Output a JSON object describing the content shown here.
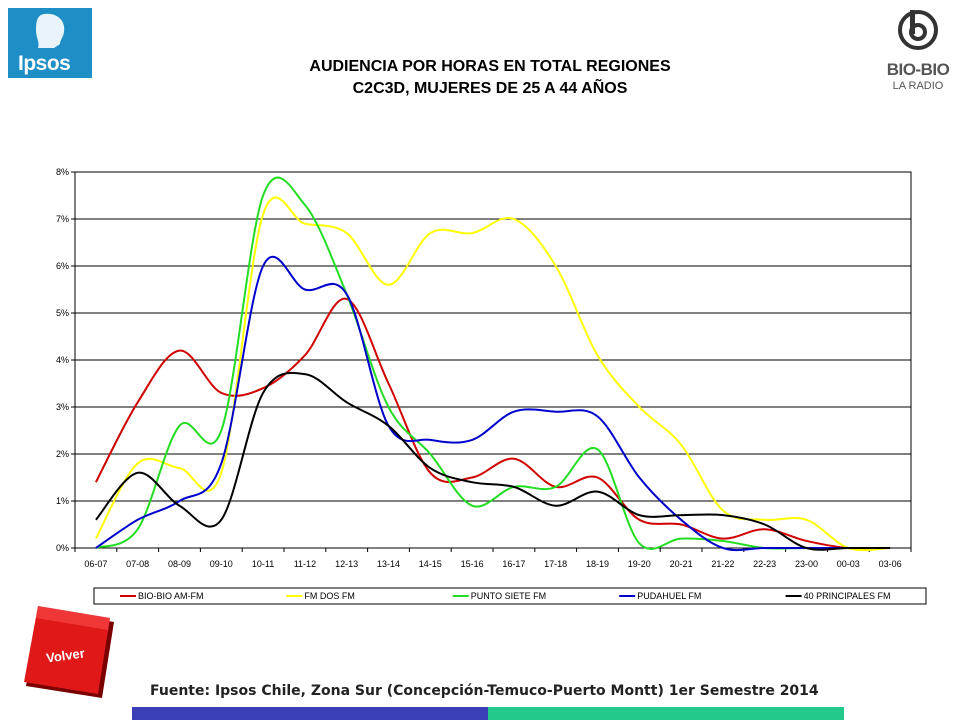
{
  "brand": {
    "ipsos": "Ipsos",
    "biobio_name": "BIO-BIO",
    "biobio_sub": "LA RADIO",
    "ipsos_color": "#1e8fc6"
  },
  "title_line1": "AUDIENCIA POR HORAS EN TOTAL REGIONES",
  "title_line2": "C2C3D, MUJERES DE 25 A 44 AÑOS",
  "volver_label": "Volver",
  "source": "Fuente: Ipsos Chile, Zona Sur (Concepción-Temuco-Puerto Montt) 1er Semestre 2014",
  "footer_colors": [
    "#3a3fb8",
    "#22c98a"
  ],
  "chart_data": {
    "type": "line",
    "categories": [
      "06-07",
      "07-08",
      "08-09",
      "09-10",
      "10-11",
      "11-12",
      "12-13",
      "13-14",
      "14-15",
      "15-16",
      "16-17",
      "17-18",
      "18-19",
      "19-20",
      "20-21",
      "21-22",
      "22-23",
      "23-00",
      "00-03",
      "03-06"
    ],
    "ylim": [
      0,
      8
    ],
    "yticks": [
      "0%",
      "1%",
      "2%",
      "3%",
      "4%",
      "5%",
      "6%",
      "7%",
      "8%"
    ],
    "grid": true,
    "legend_position": "bottom",
    "series": [
      {
        "name": "BIO-BIO AM-FM",
        "color": "#d00000",
        "values": [
          1.4,
          3.1,
          4.2,
          3.3,
          3.4,
          4.1,
          5.3,
          3.5,
          1.6,
          1.5,
          1.9,
          1.3,
          1.5,
          0.6,
          0.5,
          0.2,
          0.4,
          0.15,
          0.0,
          0.0
        ]
      },
      {
        "name": "FM DOS FM",
        "color": "#ffff00",
        "values": [
          0.2,
          1.8,
          1.7,
          1.6,
          7.1,
          6.9,
          6.7,
          5.6,
          6.7,
          6.7,
          7.0,
          6.0,
          4.1,
          3.0,
          2.2,
          0.8,
          0.6,
          0.6,
          0.0,
          0.0
        ]
      },
      {
        "name": "PUNTO SIETE FM",
        "color": "#22dd22",
        "values": [
          0.0,
          0.4,
          2.6,
          2.5,
          7.5,
          7.3,
          5.4,
          3.0,
          2.0,
          0.9,
          1.3,
          1.3,
          2.1,
          0.1,
          0.2,
          0.15,
          0.0,
          0.0,
          0.0,
          0.0
        ]
      },
      {
        "name": "PUDAHUEL FM",
        "color": "#0000cc",
        "values": [
          0.0,
          0.6,
          1.0,
          1.8,
          6.0,
          5.5,
          5.4,
          2.6,
          2.3,
          2.3,
          2.9,
          2.9,
          2.8,
          1.5,
          0.6,
          0.0,
          0.0,
          0.0,
          0.0,
          0.0
        ]
      },
      {
        "name": "40 PRINCIPALES FM",
        "color": "#000000",
        "values": [
          0.6,
          1.6,
          0.9,
          0.6,
          3.3,
          3.7,
          3.1,
          2.6,
          1.7,
          1.4,
          1.3,
          0.9,
          1.2,
          0.7,
          0.7,
          0.7,
          0.5,
          0.0,
          0.0,
          0.0
        ]
      }
    ]
  }
}
